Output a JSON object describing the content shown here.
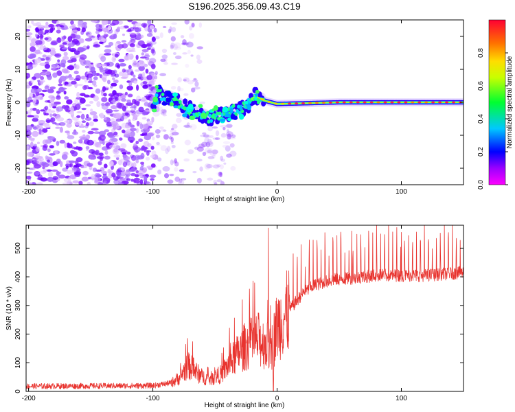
{
  "chart_data": [
    {
      "type": "heatmap",
      "title": "S196.2025.356.09.43.C19",
      "xlabel": "Height of straight line (km)",
      "ylabel": "Frequency (Hz)",
      "xlim": [
        -202,
        150
      ],
      "ylim": [
        -25,
        25
      ],
      "xticks": [
        -200,
        -100,
        0,
        100
      ],
      "yticks": [
        -20,
        -10,
        0,
        10,
        20
      ],
      "colorbar": {
        "label": "Normalized spectral amplitude",
        "range": [
          0,
          1
        ],
        "ticks": [
          "0.0",
          "0.2",
          "0.4",
          "0.6",
          "0.8"
        ],
        "colormap": "rainbow (magenta-blue-cyan-green-yellow-orange-red)"
      },
      "signal_track": [
        {
          "x": -98,
          "f": 2.5
        },
        {
          "x": -85,
          "f": 1.5
        },
        {
          "x": -75,
          "f": -1.5
        },
        {
          "x": -65,
          "f": -3
        },
        {
          "x": -55,
          "f": -4.5
        },
        {
          "x": -45,
          "f": -4
        },
        {
          "x": -35,
          "f": -2.5
        },
        {
          "x": -25,
          "f": -1.5
        },
        {
          "x": -18,
          "f": 2
        },
        {
          "x": -10,
          "f": 0.5
        },
        {
          "x": 0,
          "f": -0.5
        },
        {
          "x": 50,
          "f": 0
        },
        {
          "x": 150,
          "f": 0
        }
      ]
    },
    {
      "type": "line",
      "xlabel": "Height of straight line (km)",
      "ylabel": "SNR (10 * v/v)",
      "xlim": [
        -202,
        150
      ],
      "ylim": [
        0,
        580
      ],
      "xticks": [
        -200,
        -100,
        0,
        100
      ],
      "yticks": [
        0,
        100,
        200,
        300,
        400,
        500
      ],
      "color": "#e8332e",
      "series": [
        {
          "name": "SNR",
          "baseline": [
            {
              "x": -202,
              "y": 18
            },
            {
              "x": -100,
              "y": 20
            },
            {
              "x": -85,
              "y": 30
            },
            {
              "x": -78,
              "y": 50
            },
            {
              "x": -72,
              "y": 90
            },
            {
              "x": -68,
              "y": 80
            },
            {
              "x": -62,
              "y": 55
            },
            {
              "x": -55,
              "y": 42
            },
            {
              "x": -45,
              "y": 60
            },
            {
              "x": -35,
              "y": 115
            },
            {
              "x": -25,
              "y": 160
            },
            {
              "x": -15,
              "y": 180
            },
            {
              "x": -8,
              "y": 160
            },
            {
              "x": -5,
              "y": 140
            },
            {
              "x": 0,
              "y": 230
            },
            {
              "x": 10,
              "y": 285
            },
            {
              "x": 20,
              "y": 340
            },
            {
              "x": 30,
              "y": 370
            },
            {
              "x": 45,
              "y": 390
            },
            {
              "x": 60,
              "y": 395
            },
            {
              "x": 80,
              "y": 405
            },
            {
              "x": 100,
              "y": 405
            },
            {
              "x": 120,
              "y": 405
            },
            {
              "x": 150,
              "y": 415
            }
          ],
          "peaks": [
            {
              "x": -72,
              "y": 185
            },
            {
              "x": -28,
              "y": 320
            },
            {
              "x": -22,
              "y": 290
            },
            {
              "x": -7,
              "y": 570
            },
            {
              "x": 60,
              "y": 560
            },
            {
              "x": 100,
              "y": 555
            }
          ]
        }
      ]
    }
  ]
}
